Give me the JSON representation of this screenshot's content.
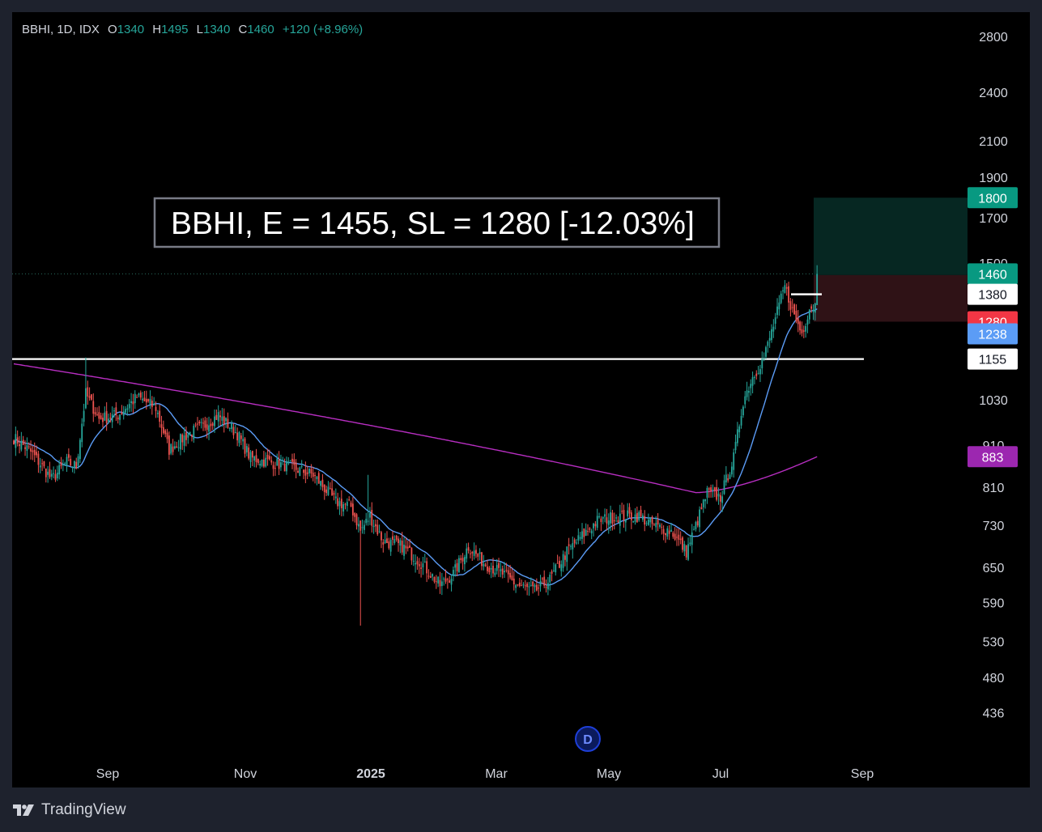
{
  "legend": {
    "symbol": "BBHI, 1D, IDX",
    "open_label": "O",
    "open": "1340",
    "high_label": "H",
    "high": "1495",
    "low_label": "L",
    "low": "1340",
    "close_label": "C",
    "close": "1460",
    "change": "+120 (+8.96%)"
  },
  "annotation": "BBHI, E = 1455, SL = 1280 [-12.03%]",
  "footer": {
    "brand": "TradingView"
  },
  "colors": {
    "up": "#26a69a",
    "down": "#ef5350",
    "ma_fast": "#5b9cf6",
    "ma_slow": "#b72ec1",
    "target": "#089981",
    "stop": "#f23645"
  },
  "chart_data": {
    "type": "candlestick",
    "yscale": "log",
    "ylim": [
      410,
      2900
    ],
    "y_ticks": [
      2800,
      2400,
      2100,
      1900,
      1700,
      1500,
      1030,
      910,
      810,
      730,
      650,
      590,
      530,
      480,
      436
    ],
    "x_ticks": [
      "Sep",
      "Nov",
      "2025",
      "Mar",
      "May",
      "Jul",
      "Sep"
    ],
    "price_labels": [
      {
        "value": 1800,
        "text": "1800",
        "kind": "target"
      },
      {
        "value": 1460,
        "text": "1460",
        "kind": "last"
      },
      {
        "value": 1380,
        "text": "1380",
        "kind": "line"
      },
      {
        "value": 1280,
        "text": "1280",
        "kind": "stop"
      },
      {
        "value": 1238,
        "text": "1238",
        "kind": "ma_fast"
      },
      {
        "value": 1155,
        "text": "1155",
        "kind": "line"
      },
      {
        "value": 883,
        "text": "883",
        "kind": "ma_slow"
      }
    ],
    "resistance": 1155,
    "position": {
      "entry": 1455,
      "stop": 1280,
      "target": 1800
    },
    "event_marker": "D",
    "anchors": [
      {
        "d": 0,
        "p": 930
      },
      {
        "d": 8,
        "p": 900
      },
      {
        "d": 15,
        "p": 860
      },
      {
        "d": 20,
        "p": 830
      },
      {
        "d": 28,
        "p": 870
      },
      {
        "d": 33,
        "p": 860
      },
      {
        "d": 38,
        "p": 1050
      },
      {
        "d": 45,
        "p": 980
      },
      {
        "d": 55,
        "p": 990
      },
      {
        "d": 65,
        "p": 1040
      },
      {
        "d": 75,
        "p": 1010
      },
      {
        "d": 82,
        "p": 900
      },
      {
        "d": 92,
        "p": 940
      },
      {
        "d": 100,
        "p": 960
      },
      {
        "d": 108,
        "p": 990
      },
      {
        "d": 118,
        "p": 940
      },
      {
        "d": 125,
        "p": 880
      },
      {
        "d": 135,
        "p": 870
      },
      {
        "d": 145,
        "p": 860
      },
      {
        "d": 158,
        "p": 840
      },
      {
        "d": 170,
        "p": 780
      },
      {
        "d": 178,
        "p": 770
      },
      {
        "d": 183,
        "p": 720
      },
      {
        "d": 188,
        "p": 750
      },
      {
        "d": 195,
        "p": 700
      },
      {
        "d": 205,
        "p": 690
      },
      {
        "d": 215,
        "p": 660
      },
      {
        "d": 225,
        "p": 620
      },
      {
        "d": 232,
        "p": 640
      },
      {
        "d": 240,
        "p": 690
      },
      {
        "d": 248,
        "p": 660
      },
      {
        "d": 258,
        "p": 640
      },
      {
        "d": 266,
        "p": 620
      },
      {
        "d": 275,
        "p": 610
      },
      {
        "d": 283,
        "p": 630
      },
      {
        "d": 292,
        "p": 680
      },
      {
        "d": 300,
        "p": 710
      },
      {
        "d": 308,
        "p": 740
      },
      {
        "d": 318,
        "p": 750
      },
      {
        "d": 330,
        "p": 750
      },
      {
        "d": 338,
        "p": 730
      },
      {
        "d": 347,
        "p": 720
      },
      {
        "d": 355,
        "p": 680
      },
      {
        "d": 360,
        "p": 730
      },
      {
        "d": 366,
        "p": 800
      },
      {
        "d": 373,
        "p": 790
      },
      {
        "d": 380,
        "p": 880
      },
      {
        "d": 385,
        "p": 1030
      },
      {
        "d": 390,
        "p": 1100
      },
      {
        "d": 396,
        "p": 1160
      },
      {
        "d": 402,
        "p": 1290
      },
      {
        "d": 407,
        "p": 1410
      },
      {
        "d": 412,
        "p": 1300
      },
      {
        "d": 416,
        "p": 1240
      },
      {
        "d": 420,
        "p": 1330
      },
      {
        "d": 423,
        "p": 1340
      },
      {
        "d": 424,
        "p": 1460
      }
    ]
  }
}
